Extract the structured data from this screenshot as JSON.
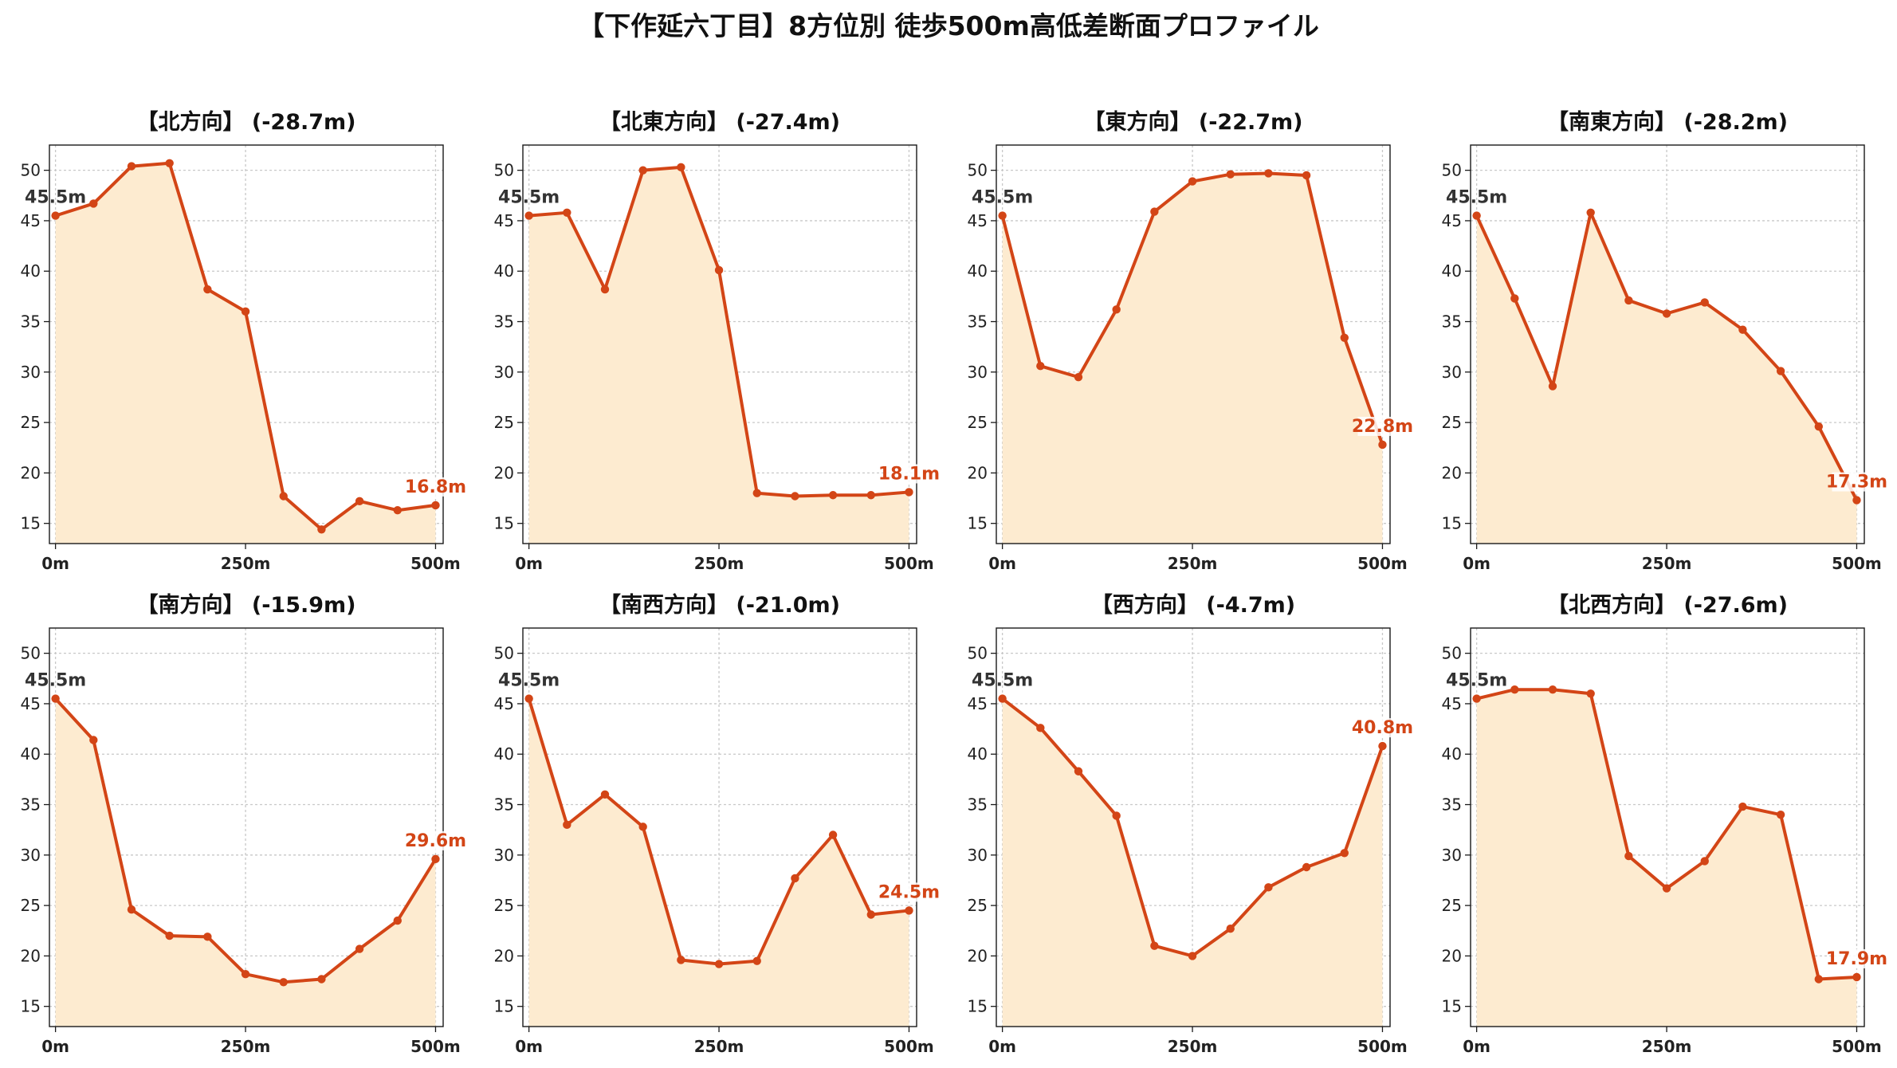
{
  "figure": {
    "title": "【下作延六丁目】8方位別 徒歩500m高低差断面プロファイル",
    "colors": {
      "line": "#d34516",
      "fill": "#fdebd0",
      "start_label": "#333333",
      "end_label": "#d34516"
    }
  },
  "chart_data": [
    {
      "type": "area",
      "title": "【北方向】 (-28.7m)",
      "x": [
        0,
        50,
        100,
        150,
        200,
        250,
        300,
        350,
        400,
        450,
        500
      ],
      "values": [
        45.5,
        46.7,
        50.4,
        50.7,
        38.2,
        36.0,
        17.7,
        14.4,
        17.2,
        16.3,
        16.8
      ],
      "start_label": "45.5m",
      "end_label": "16.8m",
      "xticks": [
        "0m",
        "250m",
        "500m"
      ],
      "yticks": [
        15,
        20,
        25,
        30,
        35,
        40,
        45,
        50
      ],
      "xlim": [
        -8,
        510
      ],
      "ylim": [
        13,
        52.5
      ],
      "grid": true
    },
    {
      "type": "area",
      "title": "【北東方向】 (-27.4m)",
      "x": [
        0,
        50,
        100,
        150,
        200,
        250,
        300,
        350,
        400,
        450,
        500
      ],
      "values": [
        45.5,
        45.8,
        38.2,
        50.0,
        50.3,
        40.1,
        18.0,
        17.7,
        17.8,
        17.8,
        18.1
      ],
      "start_label": "45.5m",
      "end_label": "18.1m",
      "xticks": [
        "0m",
        "250m",
        "500m"
      ],
      "yticks": [
        15,
        20,
        25,
        30,
        35,
        40,
        45,
        50
      ],
      "xlim": [
        -8,
        510
      ],
      "ylim": [
        13,
        52.5
      ],
      "grid": true
    },
    {
      "type": "area",
      "title": "【東方向】 (-22.7m)",
      "x": [
        0,
        50,
        100,
        150,
        200,
        250,
        300,
        350,
        400,
        450,
        500
      ],
      "values": [
        45.5,
        30.6,
        29.5,
        36.2,
        45.9,
        48.9,
        49.6,
        49.7,
        49.5,
        33.4,
        22.8
      ],
      "start_label": "45.5m",
      "end_label": "22.8m",
      "xticks": [
        "0m",
        "250m",
        "500m"
      ],
      "yticks": [
        15,
        20,
        25,
        30,
        35,
        40,
        45,
        50
      ],
      "xlim": [
        -8,
        510
      ],
      "ylim": [
        13,
        52.5
      ],
      "grid": true
    },
    {
      "type": "area",
      "title": "【南東方向】 (-28.2m)",
      "x": [
        0,
        50,
        100,
        150,
        200,
        250,
        300,
        350,
        400,
        450,
        500
      ],
      "values": [
        45.5,
        37.3,
        28.6,
        45.8,
        37.1,
        35.8,
        36.9,
        34.2,
        30.1,
        24.6,
        17.3
      ],
      "start_label": "45.5m",
      "end_label": "17.3m",
      "xticks": [
        "0m",
        "250m",
        "500m"
      ],
      "yticks": [
        15,
        20,
        25,
        30,
        35,
        40,
        45,
        50
      ],
      "xlim": [
        -8,
        510
      ],
      "ylim": [
        13,
        52.5
      ],
      "grid": true
    },
    {
      "type": "area",
      "title": "【南方向】 (-15.9m)",
      "x": [
        0,
        50,
        100,
        150,
        200,
        250,
        300,
        350,
        400,
        450,
        500
      ],
      "values": [
        45.5,
        41.4,
        24.6,
        22.0,
        21.9,
        18.2,
        17.4,
        17.7,
        20.7,
        23.5,
        29.6
      ],
      "start_label": "45.5m",
      "end_label": "29.6m",
      "xticks": [
        "0m",
        "250m",
        "500m"
      ],
      "yticks": [
        15,
        20,
        25,
        30,
        35,
        40,
        45,
        50
      ],
      "xlim": [
        -8,
        510
      ],
      "ylim": [
        13,
        52.5
      ],
      "grid": true
    },
    {
      "type": "area",
      "title": "【南西方向】 (-21.0m)",
      "x": [
        0,
        50,
        100,
        150,
        200,
        250,
        300,
        350,
        400,
        450,
        500
      ],
      "values": [
        45.5,
        33.0,
        36.0,
        32.8,
        19.6,
        19.2,
        19.5,
        27.7,
        32.0,
        24.1,
        24.5
      ],
      "start_label": "45.5m",
      "end_label": "24.5m",
      "xticks": [
        "0m",
        "250m",
        "500m"
      ],
      "yticks": [
        15,
        20,
        25,
        30,
        35,
        40,
        45,
        50
      ],
      "xlim": [
        -8,
        510
      ],
      "ylim": [
        13,
        52.5
      ],
      "grid": true
    },
    {
      "type": "area",
      "title": "【西方向】 (-4.7m)",
      "x": [
        0,
        50,
        100,
        150,
        200,
        250,
        300,
        350,
        400,
        450,
        500
      ],
      "values": [
        45.5,
        42.6,
        38.3,
        33.9,
        21.0,
        20.0,
        22.7,
        26.8,
        28.8,
        30.2,
        40.8
      ],
      "start_label": "45.5m",
      "end_label": "40.8m",
      "xticks": [
        "0m",
        "250m",
        "500m"
      ],
      "yticks": [
        15,
        20,
        25,
        30,
        35,
        40,
        45,
        50
      ],
      "xlim": [
        -8,
        510
      ],
      "ylim": [
        13,
        52.5
      ],
      "grid": true
    },
    {
      "type": "area",
      "title": "【北西方向】 (-27.6m)",
      "x": [
        0,
        50,
        100,
        150,
        200,
        250,
        300,
        350,
        400,
        450,
        500
      ],
      "values": [
        45.5,
        46.4,
        46.4,
        46.0,
        29.9,
        26.7,
        29.4,
        34.8,
        34.0,
        17.7,
        17.9
      ],
      "start_label": "45.5m",
      "end_label": "17.9m",
      "xticks": [
        "0m",
        "250m",
        "500m"
      ],
      "yticks": [
        15,
        20,
        25,
        30,
        35,
        40,
        45,
        50
      ],
      "xlim": [
        -8,
        510
      ],
      "ylim": [
        13,
        52.5
      ],
      "grid": true
    }
  ]
}
